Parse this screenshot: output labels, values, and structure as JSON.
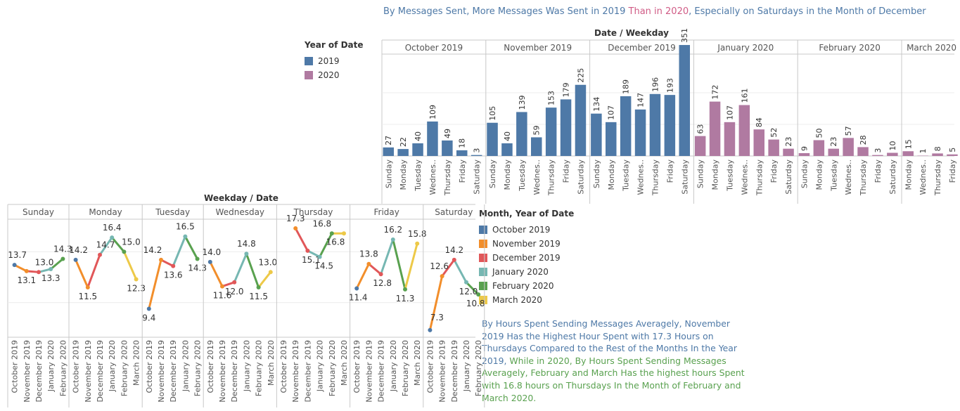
{
  "top_title": {
    "part1": "By Messages Sent, More Messages Was Sent in 2019",
    "part2": " Than in 2020",
    "part3": ", Especially on Saturdays in the Month of December",
    "color_blue": "#4e79a7",
    "color_pink": "#d05c86"
  },
  "legend_year": {
    "title": "Year of Date",
    "items": [
      {
        "label": "2019",
        "color": "#4e79a7"
      },
      {
        "label": "2020",
        "color": "#b07aa1"
      }
    ]
  },
  "legend_month": {
    "title": "Month, Year of Date",
    "items": [
      {
        "label": "October 2019",
        "color": "#4e79a7"
      },
      {
        "label": "November 2019",
        "color": "#f28e2b"
      },
      {
        "label": "December 2019",
        "color": "#e15759"
      },
      {
        "label": "January 2020",
        "color": "#76b7b2"
      },
      {
        "label": "February 2020",
        "color": "#59a14f"
      },
      {
        "label": "March 2020",
        "color": "#edc948"
      }
    ]
  },
  "note": {
    "part1": "By Hours Spent Sending Messages Averagely, November 2019 Has the Highest Hour Spent with 17.3 Hours on Thursdays Compared to the Rest of the Months In the Year 2019,",
    "part2": " While in 2020, By Hours Spent Sending Messages Averagely, February and March Has the highest hours Spent with 16.8 hours on Thursdays In the Month of February and March 2020."
  },
  "chart_data": [
    {
      "type": "bar",
      "header": "Date / Weekday",
      "groups": [
        {
          "month": "October 2019",
          "year": "2019",
          "bars": [
            [
              "Sunday",
              27
            ],
            [
              "Monday",
              22
            ],
            [
              "Tuesday",
              40
            ],
            [
              "Wednes..",
              109
            ],
            [
              "Thursday",
              49
            ],
            [
              "Friday",
              18
            ],
            [
              "Saturday",
              3
            ]
          ]
        },
        {
          "month": "November 2019",
          "year": "2019",
          "bars": [
            [
              "Sunday",
              105
            ],
            [
              "Monday",
              40
            ],
            [
              "Tuesday",
              139
            ],
            [
              "Wednes..",
              59
            ],
            [
              "Thursday",
              153
            ],
            [
              "Friday",
              179
            ],
            [
              "Saturday",
              225
            ]
          ]
        },
        {
          "month": "December 2019",
          "year": "2019",
          "bars": [
            [
              "Sunday",
              134
            ],
            [
              "Monday",
              107
            ],
            [
              "Tuesday",
              189
            ],
            [
              "Wednes..",
              147
            ],
            [
              "Thursday",
              196
            ],
            [
              "Friday",
              193
            ],
            [
              "Saturday",
              351
            ]
          ]
        },
        {
          "month": "January 2020",
          "year": "2020",
          "bars": [
            [
              "Sunday",
              63
            ],
            [
              "Monday",
              172
            ],
            [
              "Tuesday",
              107
            ],
            [
              "Wednes..",
              161
            ],
            [
              "Thursday",
              84
            ],
            [
              "Friday",
              52
            ],
            [
              "Saturday",
              23
            ]
          ]
        },
        {
          "month": "February 2020",
          "year": "2020",
          "bars": [
            [
              "Sunday",
              9
            ],
            [
              "Monday",
              50
            ],
            [
              "Tuesday",
              23
            ],
            [
              "Wednes..",
              57
            ],
            [
              "Thursday",
              28
            ],
            [
              "Friday",
              3
            ],
            [
              "Saturday",
              10
            ]
          ]
        },
        {
          "month": "March 2020",
          "year": "2020",
          "bars": [
            [
              "Monday",
              15
            ],
            [
              "Wednes..",
              1
            ],
            [
              "Thursday",
              8
            ],
            [
              "Friday",
              5
            ]
          ]
        }
      ],
      "grid": true
    },
    {
      "type": "line",
      "header": "Weekday / Date",
      "panels": [
        {
          "weekday": "Sunday",
          "points": [
            [
              "October 2019",
              13.7
            ],
            [
              "November 2019",
              13.1
            ],
            [
              "December 2019",
              13.0
            ],
            [
              "January 2020",
              13.3
            ],
            [
              "February 2020",
              14.3
            ]
          ]
        },
        {
          "weekday": "Monday",
          "points": [
            [
              "October 2019",
              14.2
            ],
            [
              "November 2019",
              11.5
            ],
            [
              "December 2019",
              14.7
            ],
            [
              "January 2020",
              16.4
            ],
            [
              "February 2020",
              15.0
            ],
            [
              "March 2020",
              12.3
            ]
          ]
        },
        {
          "weekday": "Tuesday",
          "points": [
            [
              "October 2019",
              9.4
            ],
            [
              "November 2019",
              14.2
            ],
            [
              "December 2019",
              13.6
            ],
            [
              "January 2020",
              16.5
            ],
            [
              "February 2020",
              14.3
            ]
          ]
        },
        {
          "weekday": "Wednesday",
          "points": [
            [
              "October 2019",
              14.0
            ],
            [
              "November 2019",
              11.6
            ],
            [
              "December 2019",
              12.0
            ],
            [
              "January 2020",
              14.8
            ],
            [
              "February 2020",
              11.5
            ],
            [
              "March 2020",
              13.0
            ]
          ]
        },
        {
          "weekday": "Thursday",
          "points": [
            [
              "October 2019",
              null
            ],
            [
              "November 2019",
              17.3
            ],
            [
              "December 2019",
              15.1
            ],
            [
              "January 2020",
              14.5
            ],
            [
              "February 2020",
              16.8
            ],
            [
              "March 2020",
              16.8
            ]
          ]
        },
        {
          "weekday": "Friday",
          "points": [
            [
              "October 2019",
              11.4
            ],
            [
              "November 2019",
              13.8
            ],
            [
              "December 2019",
              12.8
            ],
            [
              "January 2020",
              16.2
            ],
            [
              "February 2020",
              11.3
            ],
            [
              "March 2020",
              15.8
            ]
          ]
        },
        {
          "weekday": "Saturday",
          "points": [
            [
              "October 2019",
              7.3
            ],
            [
              "November 2019",
              12.6
            ],
            [
              "December 2019",
              14.2
            ],
            [
              "January 2020",
              12.0
            ],
            [
              "February 2020",
              10.8
            ]
          ]
        }
      ],
      "grid": true
    }
  ]
}
